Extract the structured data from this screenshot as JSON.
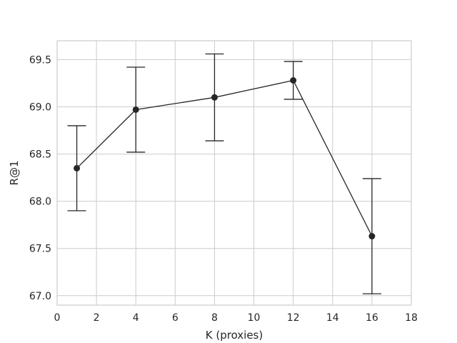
{
  "chart_data": {
    "type": "line",
    "title": "",
    "xlabel": "K (proxies)",
    "ylabel": "R@1",
    "xlim": [
      0,
      18
    ],
    "ylim": [
      66.9,
      69.7
    ],
    "x_ticks": [
      0,
      2,
      4,
      6,
      8,
      10,
      12,
      14,
      16,
      18
    ],
    "y_ticks": [
      67.0,
      67.5,
      68.0,
      68.5,
      69.0,
      69.5
    ],
    "grid": true,
    "series": [
      {
        "x": [
          1,
          4,
          8,
          12,
          16
        ],
        "y": [
          68.35,
          68.97,
          69.1,
          69.28,
          67.63
        ],
        "error": [
          0.45,
          0.45,
          0.46,
          0.2,
          0.61
        ],
        "color": "#262626"
      }
    ],
    "colors": {
      "background": "#ffffff",
      "grid": "#cccccc",
      "frame": "#cccccc",
      "line": "#262626"
    }
  }
}
